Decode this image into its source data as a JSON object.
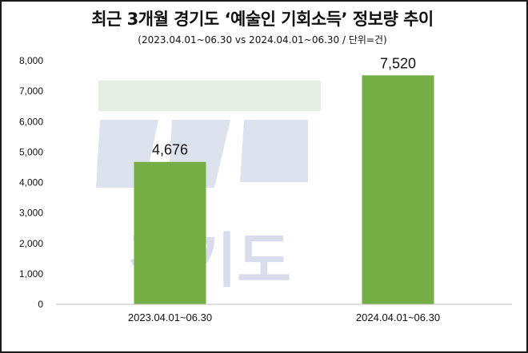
{
  "title": "최근 3개월 경기도 ‘예술인 기회소득’ 정보량 추이",
  "subtitle": "(2023.04.01~06.30 vs 2024.04.01~06.30 / 단위=건)",
  "watermark": {
    "text": "경기도",
    "colors": {
      "green": "#e3efe1",
      "blue": "#dde2ef",
      "text": "#d8dcec"
    }
  },
  "colors": {
    "bar": "#76ae46",
    "axis": "#bfbfbf",
    "text": "#111111",
    "frame": "#1a1a1a"
  },
  "chart_data": {
    "type": "bar",
    "categories": [
      "2023.04.01~06.30",
      "2024.04.01~06.30"
    ],
    "values": [
      4676,
      7520
    ],
    "data_labels": [
      "4,676",
      "7,520"
    ],
    "title": "최근 3개월 경기도 ‘예술인 기회소득’ 정보량 추이",
    "subtitle": "(2023.04.01~06.30 vs 2024.04.01~06.30 / 단위=건)",
    "xlabel": "",
    "ylabel": "",
    "ylim": [
      0,
      8000
    ],
    "yticks": [
      0,
      1000,
      2000,
      3000,
      4000,
      5000,
      6000,
      7000,
      8000
    ],
    "ytick_labels": [
      "0",
      "1,000",
      "2,000",
      "3,000",
      "4,000",
      "5,000",
      "6,000",
      "7,000",
      "8,000"
    ],
    "grid": false,
    "legend": "none"
  }
}
